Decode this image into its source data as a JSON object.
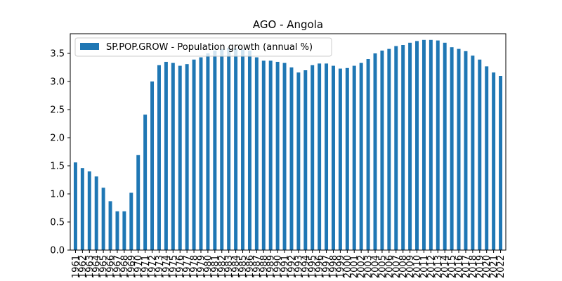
{
  "chart_data": {
    "type": "bar",
    "title": "AGO - Angola",
    "xlabel": "",
    "ylabel": "",
    "ylim": [
      0,
      3.85
    ],
    "yticks": [
      0.0,
      0.5,
      1.0,
      1.5,
      2.0,
      2.5,
      3.0,
      3.5
    ],
    "ytick_labels": [
      "0.0",
      "0.5",
      "1.0",
      "1.5",
      "2.0",
      "2.5",
      "3.0",
      "3.5"
    ],
    "grid": false,
    "legend_position": "top-left",
    "bar_color": "#1f77b4",
    "categories": [
      "1961",
      "1962",
      "1963",
      "1964",
      "1965",
      "1966",
      "1967",
      "1968",
      "1969",
      "1970",
      "1971",
      "1972",
      "1973",
      "1974",
      "1975",
      "1976",
      "1977",
      "1978",
      "1979",
      "1980",
      "1981",
      "1982",
      "1983",
      "1984",
      "1985",
      "1986",
      "1987",
      "1988",
      "1989",
      "1990",
      "1991",
      "1992",
      "1993",
      "1994",
      "1995",
      "1996",
      "1997",
      "1998",
      "1999",
      "2000",
      "2001",
      "2002",
      "2003",
      "2004",
      "2005",
      "2006",
      "2007",
      "2008",
      "2009",
      "2010",
      "2011",
      "2012",
      "2013",
      "2014",
      "2015",
      "2016",
      "2017",
      "2018",
      "2019",
      "2020",
      "2021",
      "2022"
    ],
    "series": [
      {
        "name": "SP.POP.GROW - Population growth (annual %)",
        "values": [
          1.56,
          1.46,
          1.4,
          1.31,
          1.11,
          0.87,
          0.69,
          0.69,
          1.02,
          1.69,
          2.41,
          3.0,
          3.29,
          3.35,
          3.33,
          3.28,
          3.31,
          3.39,
          3.43,
          3.5,
          3.55,
          3.58,
          3.6,
          3.59,
          3.57,
          3.55,
          3.43,
          3.37,
          3.37,
          3.35,
          3.33,
          3.25,
          3.16,
          3.2,
          3.29,
          3.32,
          3.32,
          3.28,
          3.23,
          3.24,
          3.28,
          3.33,
          3.4,
          3.5,
          3.55,
          3.58,
          3.63,
          3.65,
          3.69,
          3.72,
          3.74,
          3.74,
          3.73,
          3.69,
          3.61,
          3.58,
          3.54,
          3.46,
          3.39,
          3.27,
          3.16,
          3.1
        ]
      }
    ]
  }
}
